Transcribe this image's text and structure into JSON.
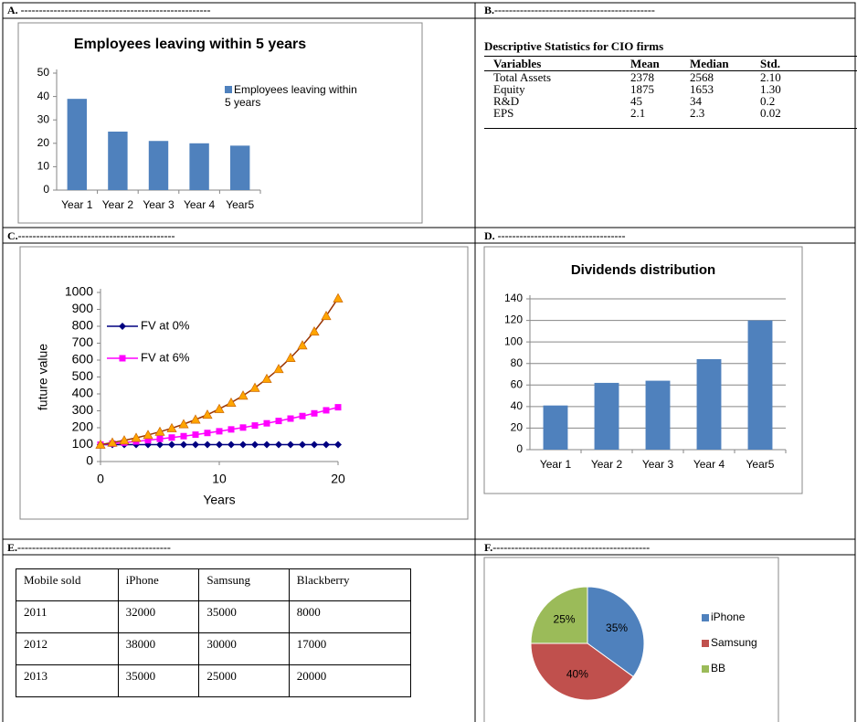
{
  "headers": [
    "A. ----------------------------------------------------",
    "B.--------------------------------------------",
    "C.-------------------------------------------",
    "D. -----------------------------------",
    "E.------------------------------------------",
    "F.-------------------------------------------"
  ],
  "table_b": {
    "title": "Descriptive Statistics for CIO firms",
    "columns": [
      "Variables",
      "Mean",
      "Median",
      "Std."
    ],
    "rows": [
      [
        "Total Assets",
        "2378",
        "2568",
        "2.10"
      ],
      [
        "Equity",
        "1875",
        "1653",
        "1.30"
      ],
      [
        "R&D",
        "45",
        "34",
        "0.2"
      ],
      [
        "EPS",
        "2.1",
        "2.3",
        "0.02"
      ]
    ]
  },
  "table_e": {
    "rows": [
      [
        "Mobile sold",
        "iPhone",
        "Samsung",
        "Blackberry"
      ],
      [
        "2011",
        "32000",
        "35000",
        "8000"
      ],
      [
        "2012",
        "38000",
        "30000",
        "17000"
      ],
      [
        "2013",
        "35000",
        "25000",
        "20000"
      ]
    ]
  },
  "chart_data": [
    {
      "type": "bar",
      "title": "Employees leaving within 5 years",
      "categories": [
        "Year 1",
        "Year 2",
        "Year 3",
        "Year 4",
        "Year5"
      ],
      "series": [
        {
          "name": "Employees leaving within 5 years",
          "color": "#4f81bd",
          "values": [
            39,
            25,
            21,
            20,
            19
          ]
        }
      ],
      "ylim": [
        0,
        50
      ],
      "yticks": [
        0,
        10,
        20,
        30,
        40,
        50
      ],
      "grid": false,
      "legend": "right"
    },
    {
      "type": "line",
      "xlabel": "Years",
      "ylabel": "future value",
      "x": [
        0,
        1,
        2,
        3,
        4,
        5,
        6,
        7,
        8,
        9,
        10,
        11,
        12,
        13,
        14,
        15,
        16,
        17,
        18,
        19,
        20
      ],
      "series": [
        {
          "name": "FV at 0%",
          "color": "#000080",
          "marker": "diamond",
          "values": [
            100,
            100,
            100,
            100,
            100,
            100,
            100,
            100,
            100,
            100,
            100,
            100,
            100,
            100,
            100,
            100,
            100,
            100,
            100,
            100,
            100
          ]
        },
        {
          "name": "FV at 6%",
          "color": "#ff00ff",
          "marker": "square",
          "values": [
            100,
            106,
            112,
            119,
            126,
            134,
            142,
            150,
            159,
            169,
            179,
            190,
            201,
            213,
            226,
            240,
            254,
            269,
            285,
            303,
            321
          ]
        },
        {
          "color": "#993300",
          "marker_color": "#ffa500",
          "marker": "triangle",
          "values": [
            100,
            112,
            125,
            140,
            157,
            176,
            197,
            221,
            248,
            277,
            311,
            348,
            390,
            436,
            489,
            547,
            613,
            687,
            769,
            861,
            965
          ]
        }
      ],
      "xlim": [
        0,
        20
      ],
      "xticks": [
        0,
        10,
        20
      ],
      "ylim": [
        0,
        1000
      ],
      "yticks": [
        0,
        100,
        200,
        300,
        400,
        500,
        600,
        700,
        800,
        900,
        1000
      ],
      "grid": false,
      "legend": "upper left"
    },
    {
      "type": "bar",
      "title": "Dividends distribution",
      "categories": [
        "Year 1",
        "Year 2",
        "Year 3",
        "Year 4",
        "Year5"
      ],
      "values": [
        41,
        62,
        64,
        84,
        120
      ],
      "color": "#4f81bd",
      "ylim": [
        0,
        140
      ],
      "yticks": [
        0,
        20,
        40,
        60,
        80,
        100,
        120,
        140
      ],
      "grid": true
    },
    {
      "type": "pie",
      "categories": [
        "iPhone",
        "Samsung",
        "BB"
      ],
      "values": [
        35,
        40,
        25
      ],
      "value_labels": [
        "35%",
        "40%",
        "25%"
      ],
      "colors": [
        "#4f81bd",
        "#c0504d",
        "#9bbb59"
      ],
      "legend": "right"
    }
  ]
}
